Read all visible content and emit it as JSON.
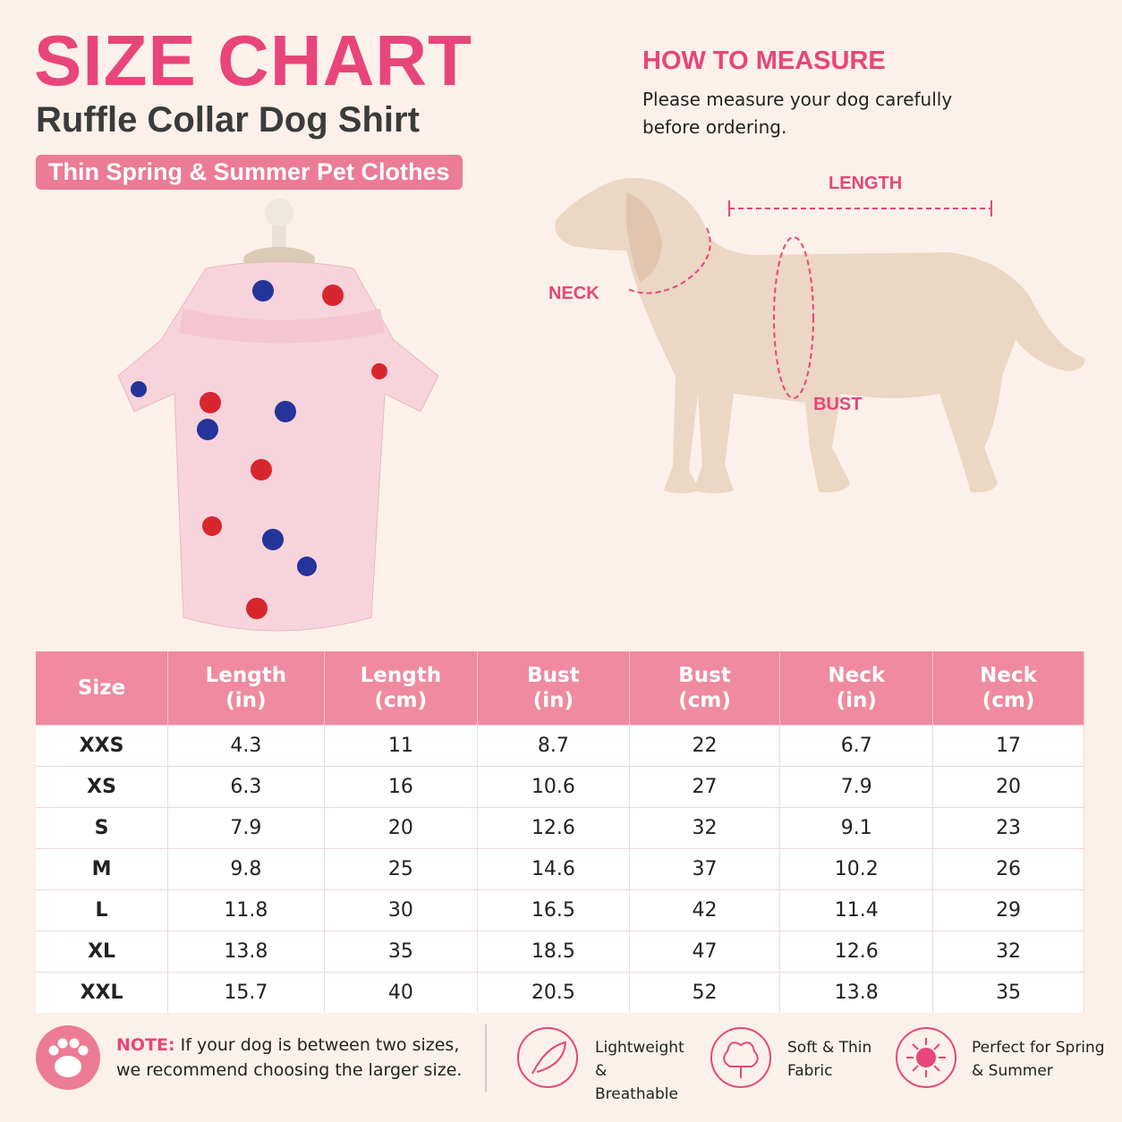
{
  "header": {
    "title": "SIZE CHART",
    "subtitle": "Ruffle Collar Dog Shirt",
    "badge": "Thin Spring & Summer Pet Clothes"
  },
  "measure": {
    "title": "HOW TO MEASURE",
    "text": "Please measure your dog carefully before ordering.",
    "labels": {
      "length": "LENGTH",
      "neck": "NECK",
      "bust": "BUST"
    }
  },
  "table": {
    "columns": [
      {
        "name": "Size"
      },
      {
        "name": "Length",
        "unit": "(in)"
      },
      {
        "name": "Length",
        "unit": "(cm)"
      },
      {
        "name": "Bust",
        "unit": "(in)"
      },
      {
        "name": "Bust",
        "unit": "(cm)"
      },
      {
        "name": "Neck",
        "unit": "(in)"
      },
      {
        "name": "Neck",
        "unit": "(cm)"
      }
    ],
    "rows": [
      [
        "XXS",
        4.3,
        11,
        8.7,
        22,
        6.7,
        17
      ],
      [
        "XS",
        6.3,
        16,
        10.6,
        27,
        7.9,
        20
      ],
      [
        "S",
        7.9,
        20,
        12.6,
        32,
        9.1,
        23
      ],
      [
        "M",
        9.8,
        25,
        14.6,
        37,
        10.2,
        26
      ],
      [
        "L",
        11.8,
        30,
        16.5,
        42,
        11.4,
        29
      ],
      [
        "XL",
        13.8,
        35,
        18.5,
        47,
        12.6,
        32
      ],
      [
        "XXL",
        15.7,
        40,
        20.5,
        52,
        13.8,
        35
      ]
    ]
  },
  "note": {
    "label": "NOTE:",
    "text": "If your dog is between two sizes, we recommend choosing the larger size."
  },
  "features": [
    "Lightweight & Breathable",
    "Soft & Thin Fabric",
    "Perfect for Spring & Summer"
  ]
}
